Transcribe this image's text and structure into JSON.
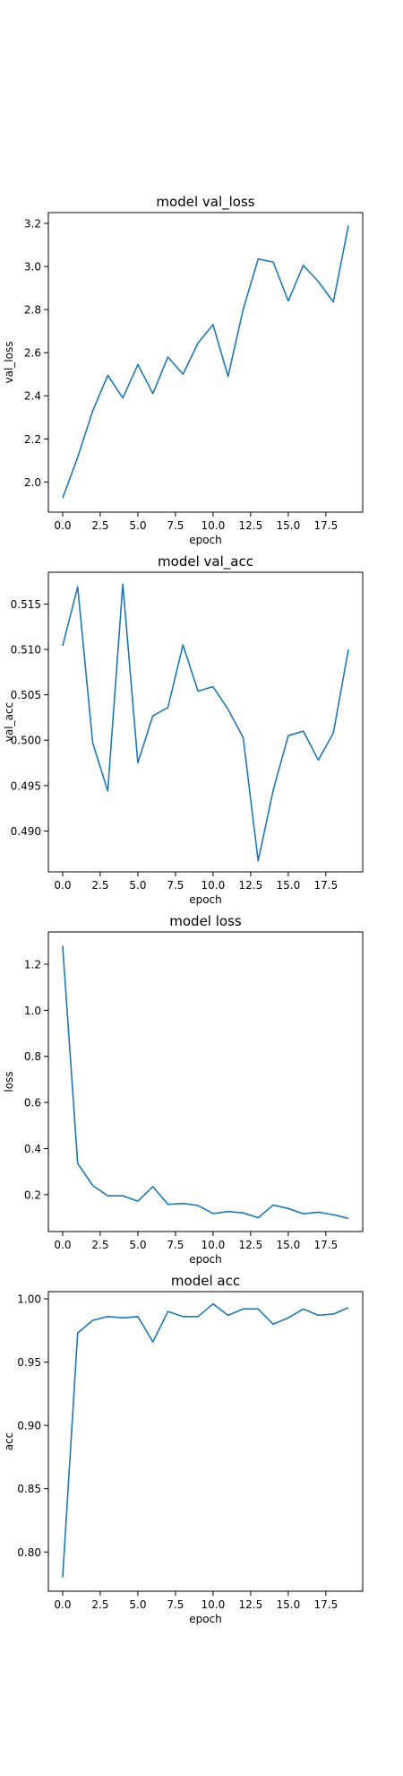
{
  "figure": {
    "background": "#ffffff",
    "line_color": "#1f77b4"
  },
  "chart_data": [
    {
      "type": "line",
      "title": "model val_loss",
      "xlabel": "epoch",
      "ylabel": "val_loss",
      "xlim": [
        -0.95,
        19.95
      ],
      "ylim": [
        1.86,
        3.25
      ],
      "xticks": [
        0.0,
        2.5,
        5.0,
        7.5,
        10.0,
        12.5,
        15.0,
        17.5
      ],
      "xtick_labels": [
        "0.0",
        "2.5",
        "5.0",
        "7.5",
        "10.0",
        "12.5",
        "15.0",
        "17.5"
      ],
      "yticks": [
        2.0,
        2.2,
        2.4,
        2.6,
        2.8,
        3.0,
        3.2
      ],
      "ytick_labels": [
        "2.0",
        "2.2",
        "2.4",
        "2.6",
        "2.8",
        "3.0",
        "3.2"
      ],
      "grid": false,
      "series": [
        {
          "x": [
            0,
            1,
            2,
            3,
            4,
            5,
            6,
            7,
            8,
            9,
            10,
            11,
            12,
            13,
            14,
            15,
            16,
            17,
            18,
            19
          ],
          "values": [
            1.925,
            2.115,
            2.33,
            2.495,
            2.39,
            2.545,
            2.41,
            2.58,
            2.5,
            2.645,
            2.73,
            2.49,
            2.8,
            3.035,
            3.02,
            2.84,
            3.005,
            2.93,
            2.835,
            3.19
          ]
        }
      ]
    },
    {
      "type": "line",
      "title": "model val_acc",
      "xlabel": "epoch",
      "ylabel": "val_acc",
      "xlim": [
        -0.95,
        19.95
      ],
      "ylim": [
        0.4855,
        0.5185
      ],
      "xticks": [
        0.0,
        2.5,
        5.0,
        7.5,
        10.0,
        12.5,
        15.0,
        17.5
      ],
      "xtick_labels": [
        "0.0",
        "2.5",
        "5.0",
        "7.5",
        "10.0",
        "12.5",
        "15.0",
        "17.5"
      ],
      "yticks": [
        0.49,
        0.495,
        0.5,
        0.505,
        0.51,
        0.515
      ],
      "ytick_labels": [
        "0.490",
        "0.495",
        "0.500",
        "0.505",
        "0.510",
        "0.515"
      ],
      "grid": false,
      "series": [
        {
          "x": [
            0,
            1,
            2,
            3,
            4,
            5,
            6,
            7,
            8,
            9,
            10,
            11,
            12,
            13,
            14,
            15,
            16,
            17,
            18,
            19
          ],
          "values": [
            0.5104,
            0.5169,
            0.4997,
            0.4944,
            0.5172,
            0.4975,
            0.5027,
            0.5036,
            0.5105,
            0.5054,
            0.5059,
            0.5034,
            0.5003,
            0.4867,
            0.4945,
            0.5005,
            0.501,
            0.4978,
            0.5008,
            0.51
          ]
        }
      ]
    },
    {
      "type": "line",
      "title": "model loss",
      "xlabel": "epoch",
      "ylabel": "loss",
      "xlim": [
        -0.95,
        19.95
      ],
      "ylim": [
        0.04,
        1.34
      ],
      "xticks": [
        0.0,
        2.5,
        5.0,
        7.5,
        10.0,
        12.5,
        15.0,
        17.5
      ],
      "xtick_labels": [
        "0.0",
        "2.5",
        "5.0",
        "7.5",
        "10.0",
        "12.5",
        "15.0",
        "17.5"
      ],
      "yticks": [
        0.2,
        0.4,
        0.6,
        0.8,
        1.0,
        1.2
      ],
      "ytick_labels": [
        "0.2",
        "0.4",
        "0.6",
        "0.8",
        "1.0",
        "1.2"
      ],
      "grid": false,
      "series": [
        {
          "x": [
            0,
            1,
            2,
            3,
            4,
            5,
            6,
            7,
            8,
            9,
            10,
            11,
            12,
            13,
            14,
            15,
            16,
            17,
            18,
            19
          ],
          "values": [
            1.28,
            0.335,
            0.24,
            0.195,
            0.195,
            0.172,
            0.235,
            0.158,
            0.162,
            0.153,
            0.118,
            0.127,
            0.121,
            0.1,
            0.155,
            0.14,
            0.117,
            0.124,
            0.113,
            0.097
          ]
        }
      ]
    },
    {
      "type": "line",
      "title": "model acc",
      "xlabel": "epoch",
      "ylabel": "acc",
      "xlim": [
        -0.95,
        19.95
      ],
      "ylim": [
        0.769,
        1.0057
      ],
      "xticks": [
        0.0,
        2.5,
        5.0,
        7.5,
        10.0,
        12.5,
        15.0,
        17.5
      ],
      "xtick_labels": [
        "0.0",
        "2.5",
        "5.0",
        "7.5",
        "10.0",
        "12.5",
        "15.0",
        "17.5"
      ],
      "yticks": [
        0.8,
        0.85,
        0.9,
        0.95,
        1.0
      ],
      "ytick_labels": [
        "0.80",
        "0.85",
        "0.90",
        "0.95",
        "1.00"
      ],
      "grid": false,
      "series": [
        {
          "x": [
            0,
            1,
            2,
            3,
            4,
            5,
            6,
            7,
            8,
            9,
            10,
            11,
            12,
            13,
            14,
            15,
            16,
            17,
            18,
            19
          ],
          "values": [
            0.78,
            0.973,
            0.983,
            0.986,
            0.985,
            0.986,
            0.966,
            0.99,
            0.986,
            0.986,
            0.996,
            0.987,
            0.992,
            0.992,
            0.98,
            0.985,
            0.992,
            0.987,
            0.988,
            0.993
          ]
        }
      ]
    }
  ]
}
